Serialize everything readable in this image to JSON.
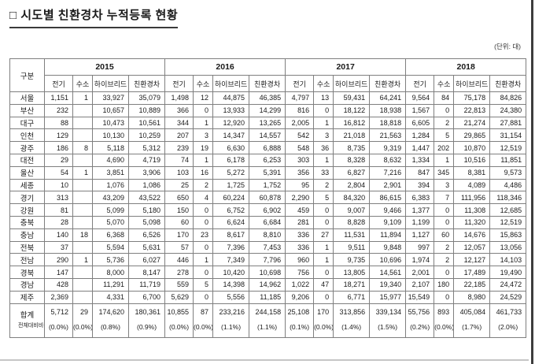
{
  "title_bullet": "□",
  "title": "시도별 친환경차 누적등록 현황",
  "unit_label": "(단위: 대)",
  "table": {
    "corner_header": "구분",
    "year_groups": [
      "2015",
      "2016",
      "2017",
      "2018"
    ],
    "sub_columns": [
      "전기",
      "수소",
      "하이브리드",
      "친환경차"
    ],
    "rows": [
      {
        "region": "서울",
        "values": [
          "1,151",
          "1",
          "33,927",
          "35,079",
          "1,498",
          "12",
          "44,875",
          "46,385",
          "4,797",
          "13",
          "59,431",
          "64,241",
          "9,564",
          "84",
          "75,178",
          "84,826"
        ]
      },
      {
        "region": "부산",
        "values": [
          "232",
          "",
          "10,657",
          "10,889",
          "366",
          "0",
          "13,933",
          "14,299",
          "816",
          "0",
          "18,122",
          "18,938",
          "1,567",
          "0",
          "22,813",
          "24,380"
        ]
      },
      {
        "region": "대구",
        "values": [
          "88",
          "",
          "10,473",
          "10,561",
          "344",
          "1",
          "12,920",
          "13,265",
          "2,005",
          "1",
          "16,812",
          "18,818",
          "6,605",
          "2",
          "21,274",
          "27,881"
        ]
      },
      {
        "region": "인천",
        "values": [
          "129",
          "",
          "10,130",
          "10,259",
          "207",
          "3",
          "14,347",
          "14,557",
          "542",
          "3",
          "21,018",
          "21,563",
          "1,284",
          "5",
          "29,865",
          "31,154"
        ]
      },
      {
        "region": "광주",
        "values": [
          "186",
          "8",
          "5,118",
          "5,312",
          "239",
          "19",
          "6,630",
          "6,888",
          "548",
          "36",
          "8,735",
          "9,319",
          "1,447",
          "202",
          "10,870",
          "12,519"
        ]
      },
      {
        "region": "대전",
        "values": [
          "29",
          "",
          "4,690",
          "4,719",
          "74",
          "1",
          "6,178",
          "6,253",
          "303",
          "1",
          "8,328",
          "8,632",
          "1,334",
          "1",
          "10,516",
          "11,851"
        ]
      },
      {
        "region": "울산",
        "values": [
          "54",
          "1",
          "3,851",
          "3,906",
          "103",
          "16",
          "5,272",
          "5,391",
          "356",
          "33",
          "6,827",
          "7,216",
          "847",
          "345",
          "8,381",
          "9,573"
        ]
      },
      {
        "region": "세종",
        "values": [
          "10",
          "",
          "1,076",
          "1,086",
          "25",
          "2",
          "1,725",
          "1,752",
          "95",
          "2",
          "2,804",
          "2,901",
          "394",
          "3",
          "4,089",
          "4,486"
        ]
      },
      {
        "region": "경기",
        "values": [
          "313",
          "",
          "43,209",
          "43,522",
          "650",
          "4",
          "60,224",
          "60,878",
          "2,290",
          "5",
          "84,320",
          "86,615",
          "6,383",
          "7",
          "111,956",
          "118,346"
        ]
      },
      {
        "region": "강원",
        "values": [
          "81",
          "",
          "5,099",
          "5,180",
          "150",
          "0",
          "6,752",
          "6,902",
          "459",
          "0",
          "9,007",
          "9,466",
          "1,377",
          "0",
          "11,308",
          "12,685"
        ]
      },
      {
        "region": "충북",
        "values": [
          "28",
          "",
          "5,070",
          "5,098",
          "60",
          "0",
          "6,624",
          "6,684",
          "281",
          "0",
          "8,828",
          "9,109",
          "1,199",
          "0",
          "11,320",
          "12,519"
        ]
      },
      {
        "region": "충남",
        "values": [
          "140",
          "18",
          "6,368",
          "6,526",
          "170",
          "23",
          "8,617",
          "8,810",
          "336",
          "27",
          "11,531",
          "11,894",
          "1,127",
          "60",
          "14,676",
          "15,863"
        ]
      },
      {
        "region": "전북",
        "values": [
          "37",
          "",
          "5,594",
          "5,631",
          "57",
          "0",
          "7,396",
          "7,453",
          "336",
          "1",
          "9,511",
          "9,848",
          "997",
          "2",
          "12,057",
          "13,056"
        ]
      },
      {
        "region": "전남",
        "values": [
          "290",
          "1",
          "5,736",
          "6,027",
          "446",
          "1",
          "7,349",
          "7,796",
          "960",
          "1",
          "9,735",
          "10,696",
          "1,974",
          "2",
          "12,127",
          "14,103"
        ]
      },
      {
        "region": "경북",
        "values": [
          "147",
          "",
          "8,000",
          "8,147",
          "278",
          "0",
          "10,420",
          "10,698",
          "756",
          "0",
          "13,805",
          "14,561",
          "2,001",
          "0",
          "17,489",
          "19,490"
        ]
      },
      {
        "region": "경남",
        "values": [
          "428",
          "",
          "11,291",
          "11,719",
          "559",
          "5",
          "14,398",
          "14,962",
          "1,022",
          "47",
          "18,271",
          "19,340",
          "2,107",
          "180",
          "22,185",
          "24,472"
        ]
      },
      {
        "region": "제주",
        "values": [
          "2,369",
          "",
          "4,331",
          "6,700",
          "5,629",
          "0",
          "5,556",
          "11,185",
          "9,206",
          "0",
          "6,771",
          "15,977",
          "15,549",
          "0",
          "8,980",
          "24,529"
        ]
      }
    ],
    "total_row": {
      "label": "합계",
      "values": [
        "5,712",
        "29",
        "174,620",
        "180,361",
        "10,855",
        "87",
        "233,216",
        "244,158",
        "25,108",
        "170",
        "313,856",
        "339,134",
        "55,756",
        "893",
        "405,084",
        "461,733"
      ]
    },
    "percent_row": {
      "label": "전체대비비율",
      "values": [
        "(0.0%)",
        "(0.0%)",
        "(0.8%)",
        "(0.9%)",
        "(0.0%)",
        "(0.0%)",
        "(1.1%)",
        "(1.1%)",
        "(0.1%)",
        "(0.0%)",
        "(1.4%)",
        "(1.5%)",
        "(0.2%)",
        "(0.0%)",
        "(1.7%)",
        "(2.0%)"
      ]
    }
  }
}
